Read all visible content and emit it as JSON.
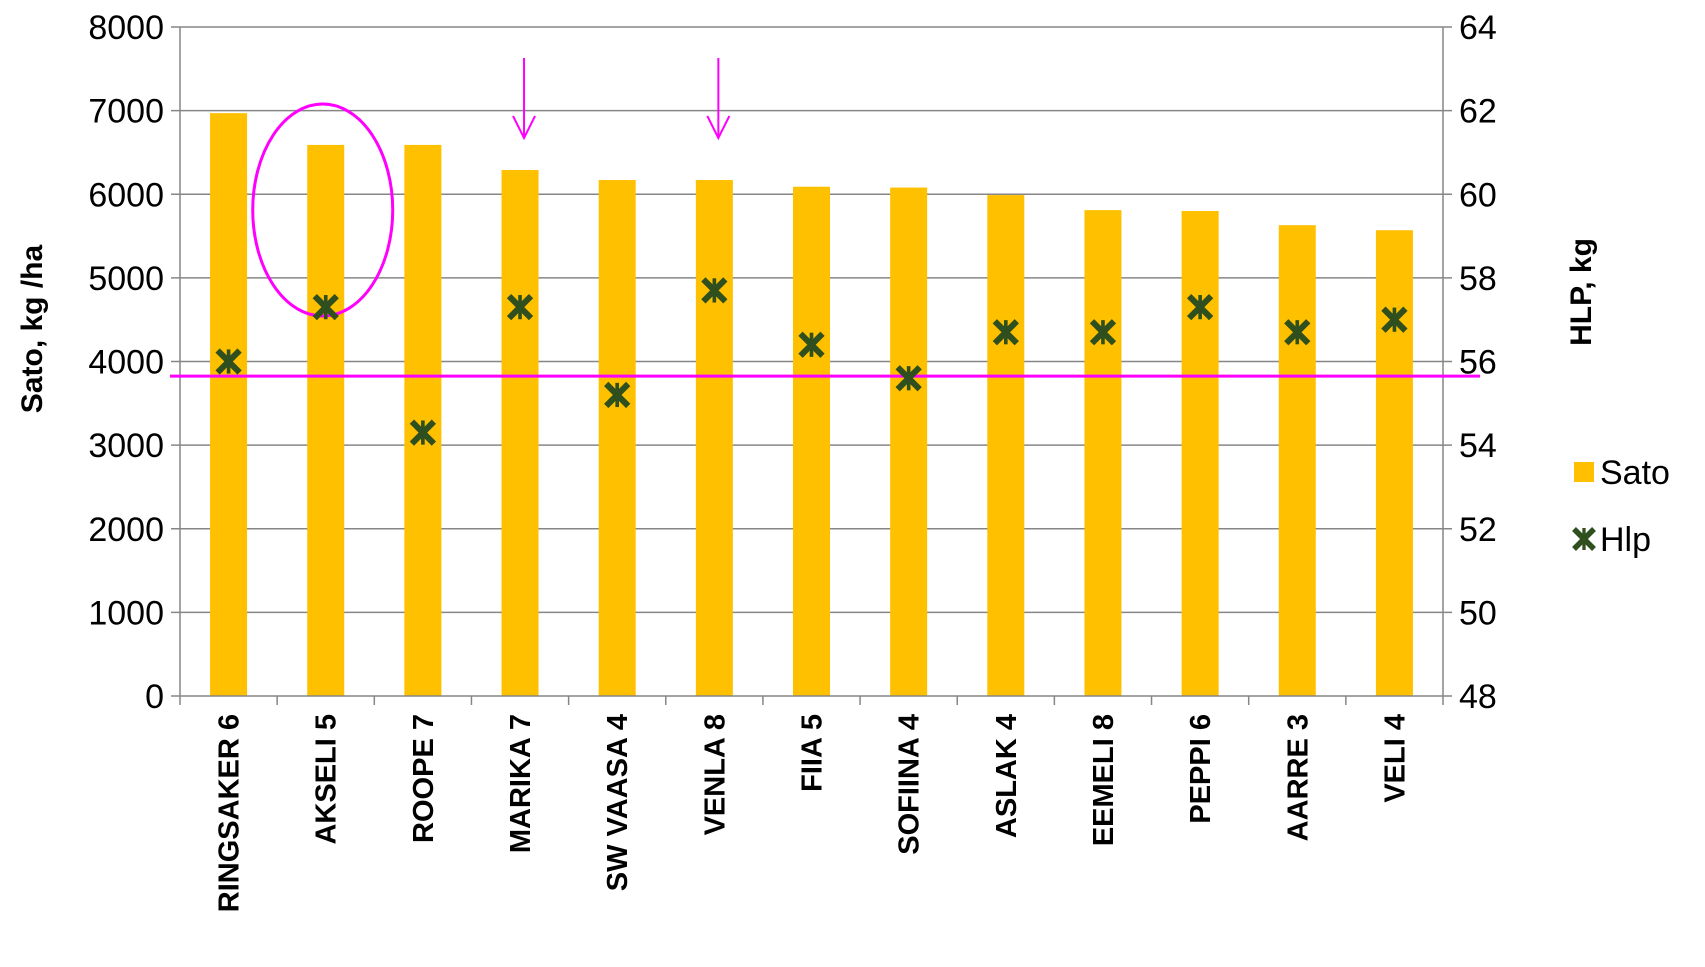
{
  "chart_data": {
    "type": "bar",
    "categories": [
      "RINGSAKER 6",
      "AKSELI 5",
      "ROOPE 7",
      "MARIKA 7",
      "SW VAASA 4",
      "VENLA 8",
      "FIIA 5",
      "SOFIINA 4",
      "ASLAK 4",
      "EEMELI 8",
      "PEPPI 6",
      "AARRE 3",
      "VELI 4"
    ],
    "series": [
      {
        "name": "Sato",
        "type": "bar",
        "axis": "left",
        "color": "#FFC000",
        "values": [
          6970,
          6590,
          6590,
          6290,
          6170,
          6170,
          6090,
          6080,
          5990,
          5810,
          5800,
          5630,
          5570
        ]
      },
      {
        "name": "Hlp",
        "type": "scatter",
        "axis": "right",
        "color": "#2F4F1E",
        "marker": "x-star",
        "values": [
          56.0,
          57.3,
          54.3,
          57.3,
          55.2,
          57.7,
          56.4,
          55.6,
          56.7,
          56.7,
          57.3,
          56.7,
          57.0
        ]
      }
    ],
    "ylabel": "Sato, kg /ha",
    "ylim": [
      0,
      8000
    ],
    "yticks": [
      "0",
      "1000",
      "2000",
      "3000",
      "4000",
      "5000",
      "6000",
      "7000",
      "8000"
    ],
    "y2label": "HLP, kg",
    "y2lim": [
      48,
      64
    ],
    "y2ticks": [
      "48",
      "50",
      "52",
      "54",
      "56",
      "58",
      "60",
      "62",
      "64"
    ],
    "grid": true,
    "legend": "right",
    "annotations": {
      "reference_line_y2": 55.65,
      "reference_line_color": "#FF00FF",
      "circled_category": "AKSELI 5",
      "arrow_categories": [
        "MARIKA 7",
        "VENLA 8"
      ],
      "annotation_color": "#FF00FF"
    }
  }
}
